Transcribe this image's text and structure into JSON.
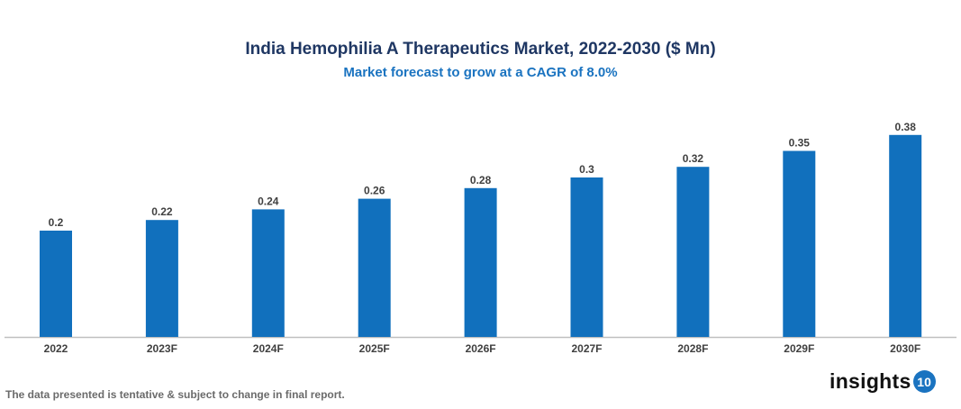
{
  "chart_data": {
    "type": "bar",
    "title": "India Hemophilia A Therapeutics Market, 2022-2030 ($ Mn)",
    "subtitle": "Market forecast to grow at a CAGR of 8.0%",
    "categories": [
      "2022",
      "2023F",
      "2024F",
      "2025F",
      "2026F",
      "2027F",
      "2028F",
      "2029F",
      "2030F"
    ],
    "values": [
      0.2,
      0.22,
      0.24,
      0.26,
      0.28,
      0.3,
      0.32,
      0.35,
      0.38
    ],
    "data_labels": [
      "0.2",
      "0.22",
      "0.24",
      "0.26",
      "0.28",
      "0.3",
      "0.32",
      "0.35",
      "0.38"
    ],
    "xlabel": "",
    "ylabel": "",
    "ylim": [
      0,
      0.38
    ],
    "grid": false,
    "bar_color": "#1170bd"
  },
  "footer": {
    "note": "The data presented is tentative & subject to change in final report.",
    "logo_text": "insights",
    "logo_badge": "10"
  }
}
